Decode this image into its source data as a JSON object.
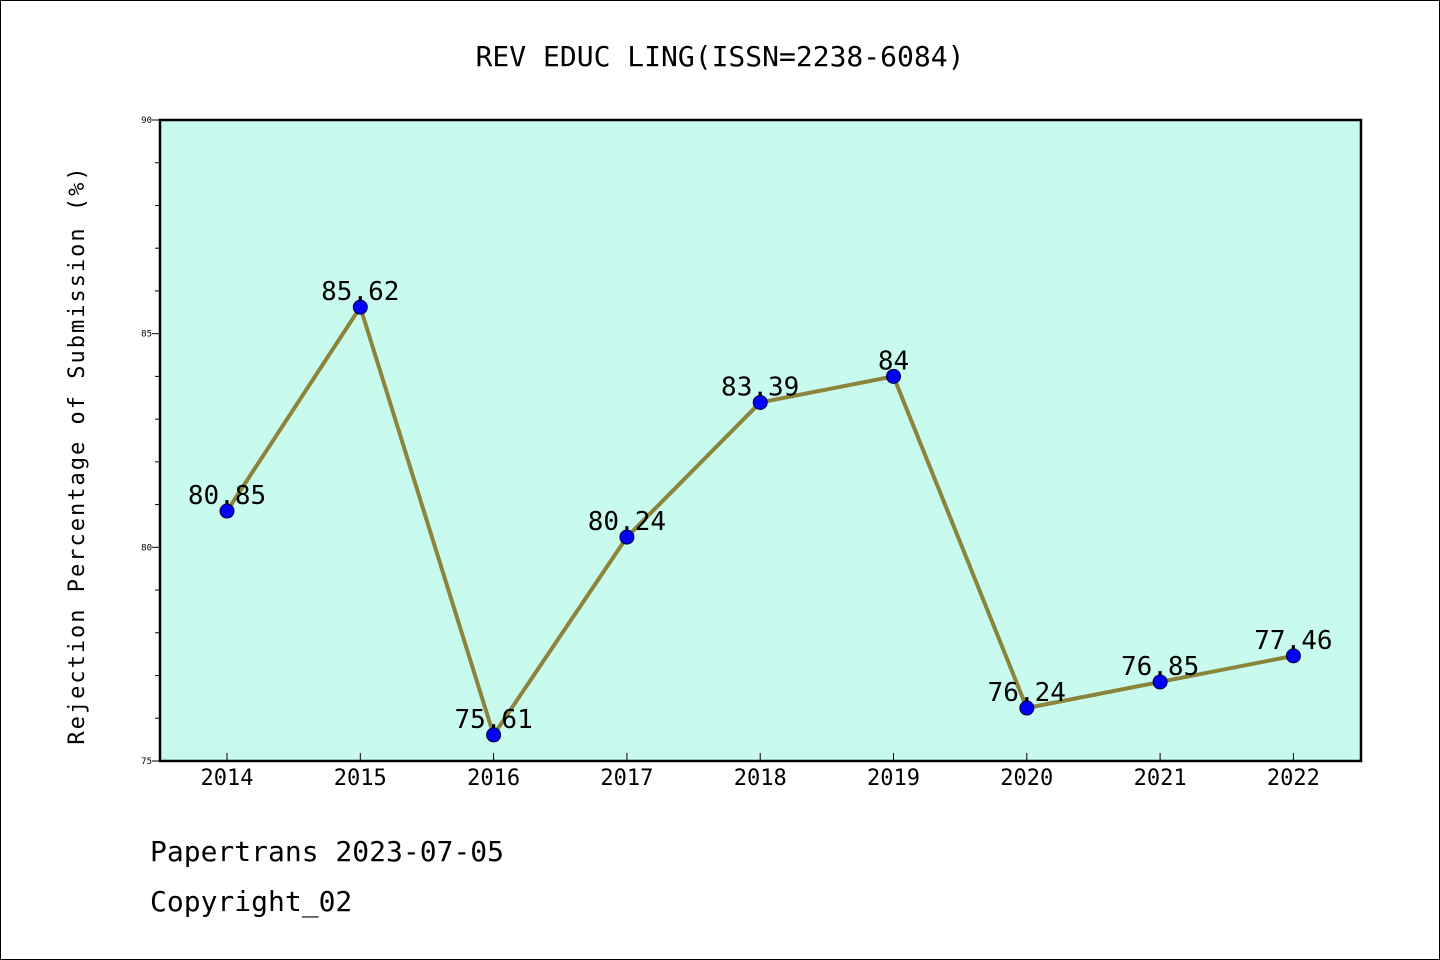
{
  "chart_data": {
    "type": "line",
    "title": "REV EDUC LING(ISSN=2238-6084)",
    "ylabel": "Rejection Percentage of Submission (%)",
    "xlabel": "",
    "categories": [
      "2014",
      "2015",
      "2016",
      "2017",
      "2018",
      "2019",
      "2020",
      "2021",
      "2022"
    ],
    "values": [
      80.85,
      85.62,
      75.61,
      80.24,
      83.39,
      84,
      76.24,
      76.85,
      77.46
    ],
    "data_labels": [
      "80.85",
      "85.62",
      "75.61",
      "80.24",
      "83.39",
      "84",
      "76.24",
      "76.85",
      "77.46"
    ],
    "ylim": [
      75,
      90
    ],
    "yticks": [
      "75",
      "80",
      "85",
      "90"
    ],
    "grid": false,
    "plot_background": "#c8fbee",
    "line_color": "#8b843a",
    "marker_color": "#0000ff"
  },
  "footer": {
    "source": "Papertrans 2023-07-05",
    "copyright": "Copyright_02"
  }
}
